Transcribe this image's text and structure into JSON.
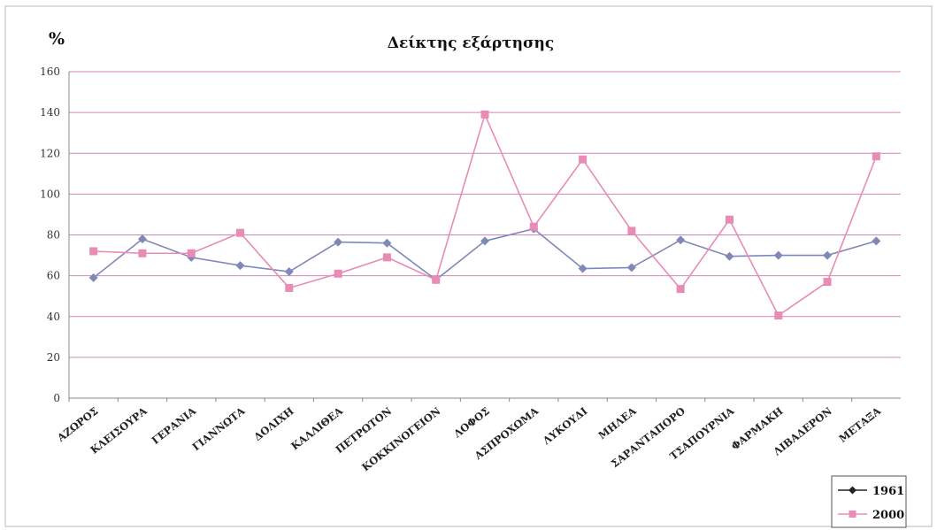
{
  "chart_data": {
    "type": "line",
    "title": "Δείκτης εξάρτησης",
    "ylabel": "%",
    "xlabel": "",
    "ylim": [
      0,
      160
    ],
    "yticks": [
      0,
      20,
      40,
      60,
      80,
      100,
      120,
      140,
      160
    ],
    "grid": true,
    "legend_position": "bottom-right",
    "categories": [
      "ΑΖΩΡΟΣ",
      "ΚΛΕΙΣΟΥΡΑ",
      "ΓΕΡΑΝΙΑ",
      "ΓΙΑΝΝΩΤΑ",
      "ΔΟΛΙΧΗ",
      "ΚΑΛΛΙΘΕΑ",
      "ΠΕΤΡΩΤΟΝ",
      "ΚΟΚΚΙΝΟΓΕΙΟΝ",
      "ΛΟΦΟΣ",
      "ΑΣΠΡΟΧΩΜΑ",
      "ΛΥΚΟΥΔΙ",
      "ΜΗΛΕΑ",
      "ΣΑΡΑΝΤΑΠΟΡΟ",
      "ΤΣΑΠΟΥΡΝΙΑ",
      "ΦΑΡΜΑΚΗ",
      "ΛΙΒΑΔΕΡΟΝ",
      "ΜΕΤΑΞΑ"
    ],
    "series": [
      {
        "name": "1961",
        "color": "#8088b8",
        "marker": "diamond",
        "values": [
          59,
          78,
          69,
          65,
          62,
          76.5,
          76,
          58,
          77,
          83,
          63.5,
          64,
          77.5,
          69.5,
          70,
          70,
          77
        ]
      },
      {
        "name": "2000",
        "color": "#e88cb5",
        "marker": "square",
        "values": [
          72,
          71,
          71,
          81,
          54,
          61,
          69,
          58,
          139,
          84,
          117,
          82,
          53.5,
          87.5,
          40.5,
          57,
          118.5
        ]
      }
    ]
  }
}
